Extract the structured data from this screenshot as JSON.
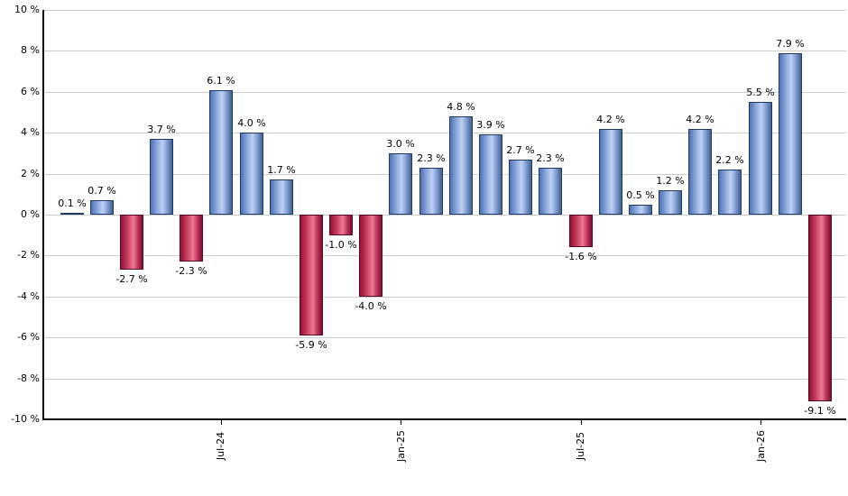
{
  "chart_data": {
    "type": "bar",
    "title": "",
    "xlabel": "",
    "ylabel": "",
    "unit": "%",
    "grid": true,
    "ylim": [
      -10,
      10
    ],
    "y_tick_step": 2,
    "y_tick_labels": [
      "10 %",
      "8 %",
      "6 %",
      "4 %",
      "2 %",
      "0 %",
      "-2 %",
      "-4 %",
      "-6 %",
      "-8 %",
      "-10 %"
    ],
    "y_tick_values": [
      10,
      8,
      6,
      4,
      2,
      0,
      -2,
      -4,
      -6,
      -8,
      -10
    ],
    "values": [
      0.1,
      0.7,
      -2.7,
      3.7,
      -2.3,
      6.1,
      4.0,
      1.7,
      -5.9,
      -1.0,
      -4.0,
      3.0,
      2.3,
      4.8,
      3.9,
      2.7,
      2.3,
      -1.6,
      4.2,
      0.5,
      1.2,
      4.2,
      2.2,
      5.5,
      7.9,
      -9.1
    ],
    "value_labels": [
      "0.1 %",
      "0.7 %",
      "-2.7 %",
      "3.7 %",
      "-2.3 %",
      "6.1 %",
      "4.0 %",
      "1.7 %",
      "-5.9 %",
      "-1.0 %",
      "-4.0 %",
      "3.0 %",
      "2.3 %",
      "4.8 %",
      "3.9 %",
      "2.7 %",
      "2.3 %",
      "-1.6 %",
      "4.2 %",
      "0.5 %",
      "1.2 %",
      "4.2 %",
      "2.2 %",
      "5.5 %",
      "7.9 %",
      "-9.1 %"
    ],
    "x_tick_labels": [
      "Jul-24",
      "Jan-25",
      "Jul-25",
      "Jan-26"
    ],
    "x_tick_bar_indices": [
      5,
      11,
      17,
      23
    ],
    "positive_color": "#89a5da",
    "negative_color": "#c13458",
    "gridline_color": "#cccccc",
    "axis_color": "#000000"
  }
}
